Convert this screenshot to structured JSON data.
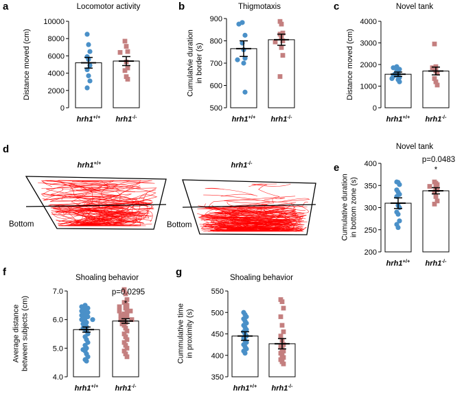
{
  "colors": {
    "wt": "#4a90c8",
    "ko": "#c47f7f",
    "track": "#ff0000",
    "axis": "#000000"
  },
  "chart_data": [
    {
      "id": "a",
      "type": "bar-scatter",
      "panel_label": "a",
      "title": "Locomotor activity",
      "ylabel": "Distance moved (cm)",
      "ylim": [
        0,
        10000
      ],
      "yticks": [
        0,
        2000,
        4000,
        6000,
        8000,
        10000
      ],
      "categories": [
        "hrh1",
        "hrh1"
      ],
      "superscripts": [
        "+/+",
        "-/-"
      ],
      "series": [
        {
          "mean": 5200,
          "sem": 620,
          "points": [
            8500,
            7300,
            6500,
            5900,
            5600,
            4900,
            4400,
            3700,
            3100,
            2300
          ]
        },
        {
          "mean": 5400,
          "sem": 520,
          "points": [
            7700,
            7100,
            6500,
            6400,
            5300,
            4600,
            4300,
            3600,
            3300
          ]
        }
      ]
    },
    {
      "id": "b",
      "type": "bar-scatter",
      "panel_label": "b",
      "title": "Thigmotaxis",
      "ylabel": [
        "Cumulatvie duration",
        "in border (s)"
      ],
      "ylim": [
        500,
        900
      ],
      "yticks": [
        500,
        600,
        700,
        800,
        900
      ],
      "categories": [
        "hrh1",
        "hrh1"
      ],
      "superscripts": [
        "+/+",
        "-/-"
      ],
      "series": [
        {
          "mean": 765,
          "sem": 35,
          "points": [
            882,
            875,
            825,
            790,
            760,
            722,
            715,
            700,
            570
          ]
        },
        {
          "mean": 805,
          "sem": 25,
          "points": [
            887,
            875,
            835,
            830,
            815,
            800,
            795,
            770,
            735,
            640
          ]
        }
      ]
    },
    {
      "id": "c",
      "type": "bar-scatter",
      "panel_label": "c",
      "title": "Novel tank",
      "ylabel": "Distance moved (cm)",
      "ylim": [
        0,
        4000
      ],
      "yticks": [
        0,
        1000,
        2000,
        3000,
        4000
      ],
      "categories": [
        "hrh1",
        "hrh1"
      ],
      "superscripts": [
        "+/+",
        "-/-"
      ],
      "series": [
        {
          "mean": 1550,
          "sem": 100,
          "points": [
            1900,
            1850,
            1780,
            1700,
            1600,
            1550,
            1500,
            1450,
            1400,
            1350,
            1300,
            1200
          ]
        },
        {
          "mean": 1700,
          "sem": 180,
          "points": [
            2950,
            1900,
            1850,
            1800,
            1700,
            1600,
            1350,
            1200,
            1050
          ]
        }
      ]
    },
    {
      "id": "e",
      "type": "bar-scatter",
      "panel_label": "e",
      "title": "Novel tank",
      "ylabel": [
        "Cumulative duration",
        "in bottom zone (s)"
      ],
      "ylim": [
        200,
        400
      ],
      "yticks": [
        200,
        250,
        300,
        350,
        400
      ],
      "categories": [
        "hrh1",
        "hrh1"
      ],
      "superscripts": [
        "+/+",
        "-/-"
      ],
      "annotation": {
        "text": "p=0.0483",
        "star": "*"
      },
      "series": [
        {
          "mean": 310,
          "sem": 12,
          "points": [
            358,
            357,
            352,
            340,
            335,
            330,
            325,
            305,
            300,
            290,
            285,
            270,
            262,
            255
          ]
        },
        {
          "mean": 338,
          "sem": 7,
          "points": [
            358,
            355,
            352,
            348,
            345,
            340,
            335,
            325,
            315,
            308
          ]
        }
      ]
    },
    {
      "id": "f",
      "type": "bar-scatter",
      "panel_label": "f",
      "title": "Shoaling behavior",
      "ylabel": [
        "Average distance",
        "between subjects (cm)"
      ],
      "ylim": [
        4.0,
        7.0
      ],
      "yticks": [
        4.0,
        5.0,
        6.0,
        7.0
      ],
      "tick_decimals": 1,
      "categories": [
        "hrh1",
        "hrh1"
      ],
      "superscripts": [
        "+/+",
        "-/-"
      ],
      "annotation": {
        "text": "p=0.0295",
        "star": "*"
      },
      "series": [
        {
          "mean": 5.65,
          "sem": 0.09,
          "points": [
            6.5,
            6.45,
            6.4,
            6.35,
            6.3,
            6.25,
            6.2,
            6.15,
            6.1,
            6.05,
            6.0,
            6.0,
            5.95,
            5.9,
            5.85,
            5.8,
            5.75,
            5.7,
            5.65,
            5.6,
            5.5,
            5.4,
            5.3,
            5.2,
            5.1,
            5.0,
            4.95,
            4.9,
            4.8,
            4.7,
            4.6,
            4.55
          ]
        },
        {
          "mean": 5.95,
          "sem": 0.08,
          "points": [
            7.05,
            6.9,
            6.7,
            6.6,
            6.55,
            6.5,
            6.45,
            6.4,
            6.35,
            6.3,
            6.3,
            6.25,
            6.2,
            6.15,
            6.1,
            6.05,
            6.0,
            6.0,
            5.95,
            5.9,
            5.85,
            5.8,
            5.7,
            5.6,
            5.5,
            5.4,
            5.3,
            5.2,
            5.1,
            5.0,
            4.9,
            4.8,
            4.7
          ]
        }
      ]
    },
    {
      "id": "g",
      "type": "bar-scatter",
      "panel_label": "g",
      "title": "Shoaling behavior",
      "ylabel": [
        "Cummulative time",
        "in proximity (s)"
      ],
      "ylim": [
        350,
        550
      ],
      "yticks": [
        350,
        400,
        450,
        500,
        550
      ],
      "categories": [
        "hrh1",
        "hrh1"
      ],
      "superscripts": [
        "+/+",
        "-/-"
      ],
      "series": [
        {
          "mean": 445,
          "sem": 10,
          "points": [
            500,
            495,
            490,
            485,
            480,
            475,
            470,
            465,
            460,
            455,
            450,
            445,
            440,
            435,
            430,
            425,
            420,
            415,
            410,
            405
          ]
        },
        {
          "mean": 427,
          "sem": 12,
          "points": [
            530,
            525,
            510,
            490,
            470,
            455,
            445,
            435,
            425,
            420,
            415,
            410,
            405,
            400,
            395,
            390,
            385,
            380
          ]
        }
      ]
    }
  ],
  "panel_d": {
    "panel_label": "d",
    "tracks": [
      {
        "genotype": "hrh1",
        "superscript": "+/+",
        "zone_label": "Bottom"
      },
      {
        "genotype": "hrh1",
        "superscript": "-/-",
        "zone_label": "Bottom"
      }
    ]
  }
}
